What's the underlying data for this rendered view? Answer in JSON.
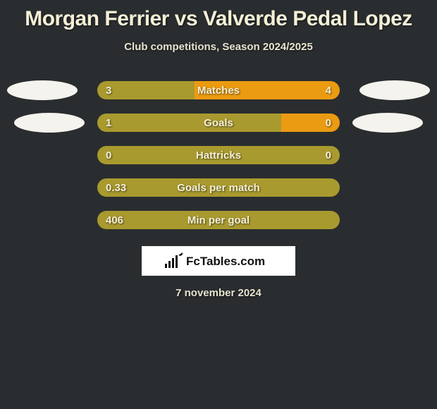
{
  "title": "Morgan Ferrier vs Valverde Pedal Lopez",
  "subtitle": "Club competitions, Season 2024/2025",
  "dateline": "7 november 2024",
  "branding": "FcTables.com",
  "colors": {
    "background": "#2a2d2f",
    "barPrimary": "#a99a2f",
    "barSecondary": "#eb9b11",
    "title": "#f4efd6",
    "text": "#e8e4d0",
    "avatar": "#f5f3ee",
    "brandBg": "#ffffff"
  },
  "avatars": {
    "leftRow1": true,
    "rightRow1": true,
    "leftRow2": true,
    "rightRow2": true
  },
  "bar": {
    "trackWidth": 344,
    "trackHeight": 26,
    "radius": 13
  },
  "rows": [
    {
      "label": "Matches",
      "left": "3",
      "right": "4",
      "split": true,
      "splitFraction": 0.4,
      "leftColor": "#a99a2f",
      "rightColor": "#eb9b11",
      "showAvatars": true
    },
    {
      "label": "Goals",
      "left": "1",
      "right": "0",
      "split": true,
      "splitFraction": 0.76,
      "leftColor": "#a99a2f",
      "rightColor": "#eb9b11",
      "showAvatars": true
    },
    {
      "label": "Hattricks",
      "left": "0",
      "right": "0",
      "split": false,
      "fullColor": "#a99a2f",
      "showAvatars": false
    },
    {
      "label": "Goals per match",
      "left": "0.33",
      "right": "",
      "split": false,
      "fullColor": "#a99a2f",
      "showAvatars": false
    },
    {
      "label": "Min per goal",
      "left": "406",
      "right": "",
      "split": false,
      "fullColor": "#a99a2f",
      "showAvatars": false
    }
  ]
}
